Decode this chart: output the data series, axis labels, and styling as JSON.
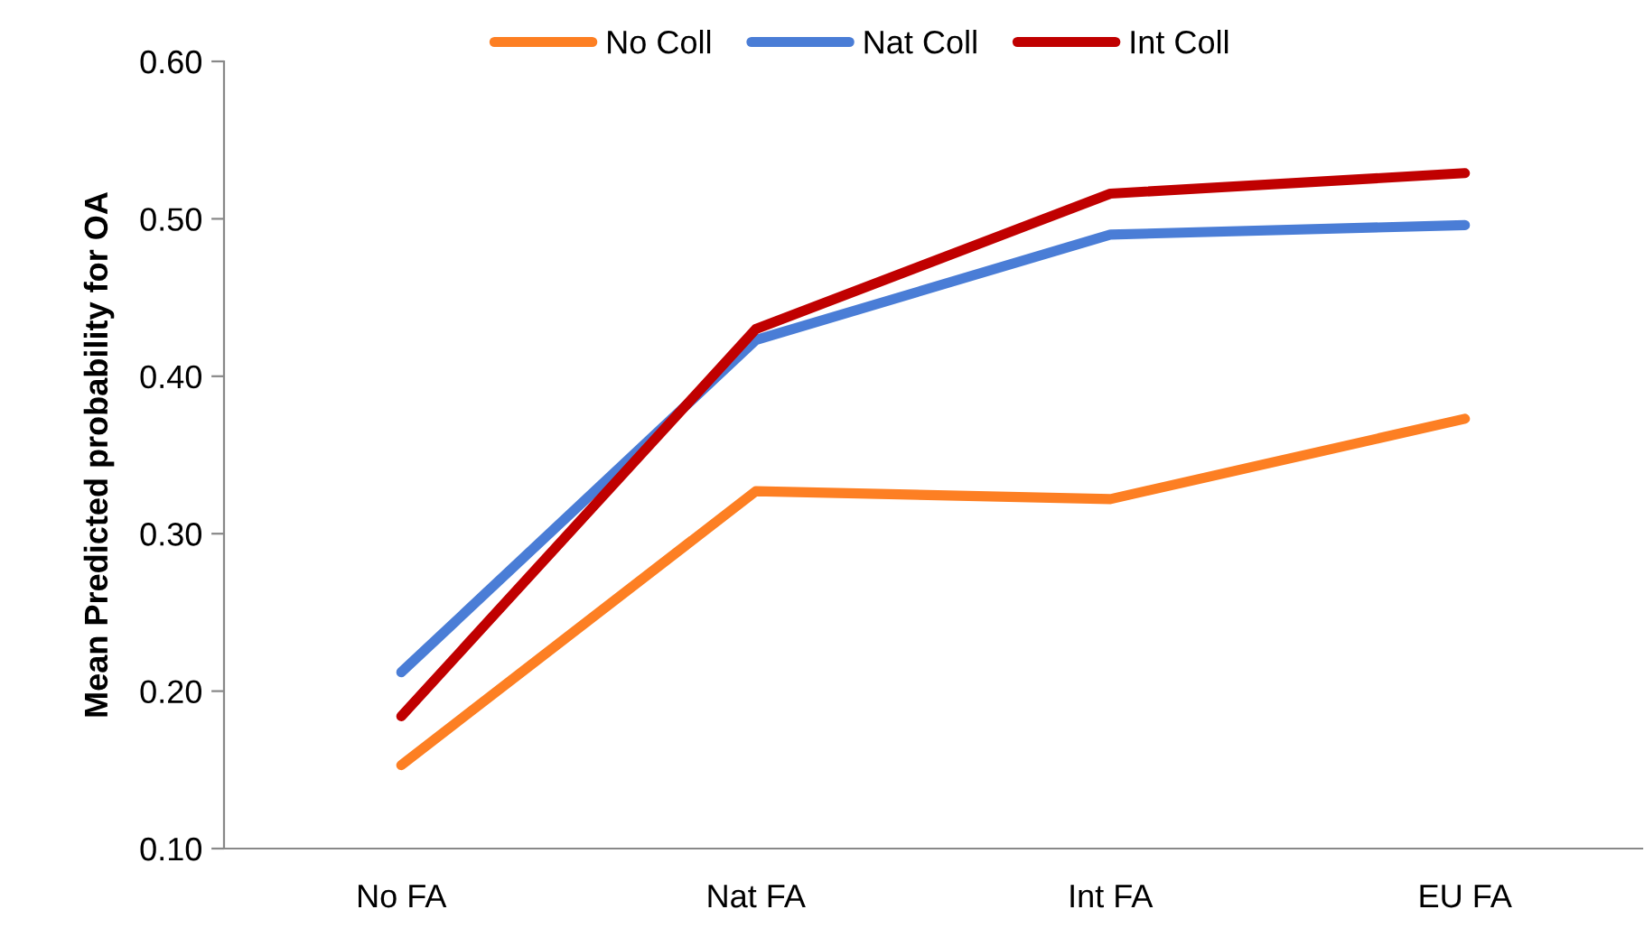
{
  "chart_data": {
    "type": "line",
    "ylabel": "Mean Predicted probability for OA",
    "categories": [
      "No FA",
      "Nat FA",
      "Int FA",
      "EU FA"
    ],
    "series": [
      {
        "name": "No Coll",
        "color": "#fd7f23",
        "values": [
          0.153,
          0.327,
          0.322,
          0.373
        ]
      },
      {
        "name": "Nat Coll",
        "color": "#4a7dd6",
        "values": [
          0.212,
          0.423,
          0.49,
          0.496
        ]
      },
      {
        "name": "Int Coll",
        "color": "#c00000",
        "values": [
          0.184,
          0.43,
          0.516,
          0.529
        ]
      }
    ],
    "ylim": [
      0.1,
      0.6
    ],
    "yticks": [
      {
        "value": 0.1,
        "label": "0.10"
      },
      {
        "value": 0.2,
        "label": "0.20"
      },
      {
        "value": 0.3,
        "label": "0.30"
      },
      {
        "value": 0.4,
        "label": "0.40"
      },
      {
        "value": 0.5,
        "label": "0.50"
      },
      {
        "value": 0.6,
        "label": "0.60"
      }
    ],
    "grid": false,
    "legend": "top",
    "marker": "none",
    "line_style": "solid"
  }
}
